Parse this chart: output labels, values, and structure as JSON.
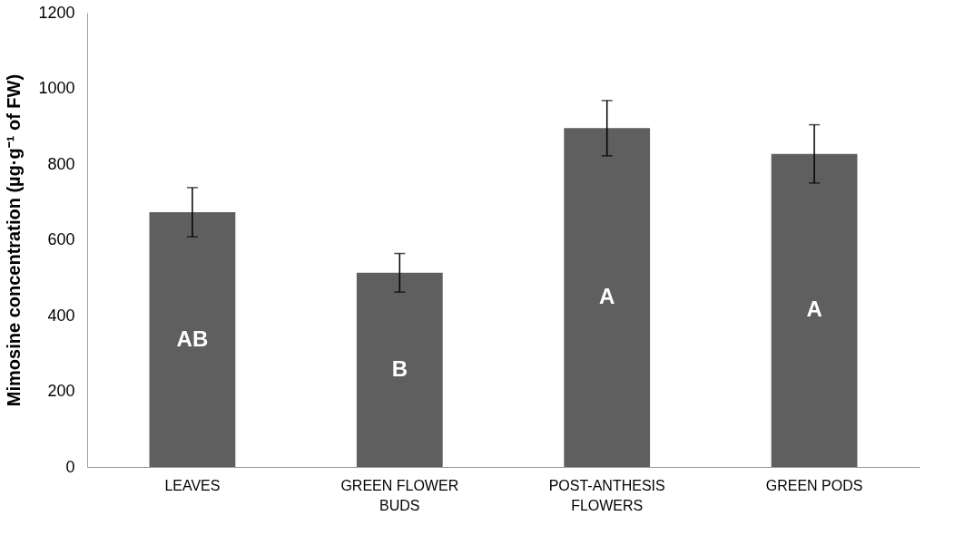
{
  "chart_data": {
    "type": "bar",
    "ylabel": "Mimosine concentration (µg·g⁻¹ of FW)",
    "categories": [
      "LEAVES",
      "GREEN FLOWER BUDS",
      "POST-ANTHESIS FLOWERS",
      "GREEN PODS"
    ],
    "values": [
      673,
      513,
      895,
      827
    ],
    "errors": [
      65,
      51,
      73,
      77
    ],
    "color": "#5f5f5f",
    "ylim": [
      0,
      1200
    ],
    "yticks": [
      0,
      200,
      400,
      600,
      800,
      1000,
      1200
    ],
    "grid": false,
    "annotations": [
      "AB",
      "B",
      "A",
      "A"
    ]
  }
}
